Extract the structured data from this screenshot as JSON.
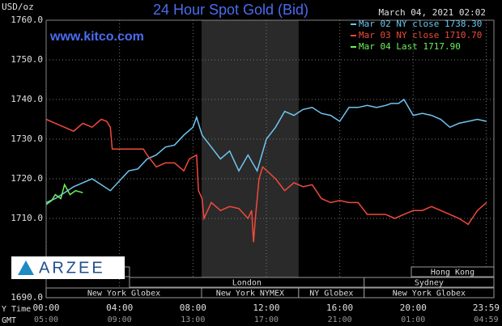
{
  "chart_data": {
    "type": "line",
    "title": "24 Hour Spot Gold (Bid)",
    "timestamp": "March 04, 2021 02:02",
    "y_unit": "USD/oz",
    "website": "www.kitco.com",
    "watermark": "ARZEE",
    "x_row_labels": [
      "Y Time",
      "GMT"
    ],
    "xlim": [
      0,
      24.4
    ],
    "ylim": [
      1690,
      1760
    ],
    "xticks": [
      {
        "value": 0,
        "label": "00:00"
      },
      {
        "value": 4,
        "label": "04:00"
      },
      {
        "value": 8,
        "label": "08:00"
      },
      {
        "value": 12,
        "label": "12:00"
      },
      {
        "value": 16,
        "label": "16:00"
      },
      {
        "value": 20,
        "label": "20:00"
      },
      {
        "value": 23.98,
        "label": "23:59"
      }
    ],
    "gmt_labels": [
      "05:00",
      "09:00",
      "13:00",
      "17:00",
      "21:00",
      "01:00",
      "04:59"
    ],
    "yticks": [
      {
        "value": 1690,
        "label": "1690.0"
      },
      {
        "value": 1710,
        "label": "1710.0"
      },
      {
        "value": 1720,
        "label": "1720.0"
      },
      {
        "value": 1730,
        "label": "1730.0"
      },
      {
        "value": 1740,
        "label": "1740.0"
      },
      {
        "value": 1750,
        "label": "1750.0"
      },
      {
        "value": 1760,
        "label": "1760.0"
      }
    ],
    "grid": true,
    "shaded": [
      8.47,
      13.76
    ],
    "sessions": [
      {
        "name": null,
        "start": 0,
        "end": 4.54,
        "row": 0
      },
      {
        "name": "Hong Kong",
        "start": 19.9,
        "end": 24.4,
        "row": 0
      },
      {
        "name": "London",
        "start": 4.54,
        "end": 17.33,
        "row": 1
      },
      {
        "name": "Sydney",
        "start": 17.33,
        "end": 24.4,
        "row": 1
      },
      {
        "name": "New York Globex",
        "start": 0,
        "end": 8.47,
        "row": 2
      },
      {
        "name": "New York NYMEX",
        "start": 8.47,
        "end": 13.76,
        "row": 2
      },
      {
        "name": "NY Globex",
        "start": 13.76,
        "end": 17.33,
        "row": 2
      },
      {
        "name": "New York Globex",
        "start": 17.33,
        "end": 24.4,
        "row": 2
      }
    ],
    "series": [
      {
        "name": "Mar 02 NY close 1738.30",
        "color": "#6ec6f0",
        "x": [
          0,
          0.5,
          1,
          1.5,
          2,
          2.5,
          3,
          3.5,
          4,
          4.5,
          5,
          5.5,
          6,
          6.5,
          7,
          7.5,
          8,
          8.2,
          8.5,
          9,
          9.5,
          10,
          10.5,
          11,
          11.5,
          12,
          12.5,
          13,
          13.5,
          14,
          14.5,
          15,
          15.5,
          16,
          16.5,
          17,
          17.5,
          18,
          18.5,
          18.8,
          19.2,
          19.5,
          20,
          20.5,
          21,
          21.5,
          22,
          22.5,
          23,
          23.5,
          24
        ],
        "values": [
          1714,
          1715,
          1716.5,
          1718,
          1719,
          1720,
          1718.5,
          1717,
          1719.5,
          1722,
          1722.5,
          1725,
          1726,
          1728,
          1728.5,
          1731,
          1733,
          1735.5,
          1731,
          1728,
          1725,
          1727,
          1722,
          1726,
          1722,
          1730,
          1733,
          1737,
          1736,
          1737.5,
          1738,
          1736.5,
          1736,
          1734.5,
          1738,
          1738,
          1738.5,
          1738,
          1738.5,
          1739,
          1739,
          1740,
          1736,
          1736.5,
          1736,
          1735,
          1733,
          1734,
          1734.5,
          1735,
          1734.5
        ]
      },
      {
        "name": "Mar 03 NY close 1710.70",
        "color": "#f04a3c",
        "x": [
          0,
          0.5,
          1,
          1.5,
          2,
          2.5,
          3,
          3.3,
          3.5,
          3.6,
          5.3,
          5.5,
          6,
          6.5,
          7,
          7.5,
          7.8,
          8.2,
          8.3,
          8.5,
          8.6,
          9,
          9.5,
          10,
          10.5,
          11,
          11.2,
          11.3,
          11.4,
          11.6,
          11.8,
          12.5,
          13,
          13.5,
          14,
          14.5,
          15,
          15.5,
          16,
          16.5,
          17,
          17.5,
          18,
          18.5,
          19,
          19.5,
          20,
          20.5,
          21,
          21.5,
          22,
          22.5,
          23,
          23.5,
          24
        ],
        "values": [
          1735,
          1734,
          1733,
          1732,
          1734,
          1733,
          1735,
          1734.5,
          1733,
          1727.5,
          1727.5,
          1726,
          1723,
          1724,
          1724,
          1722,
          1725,
          1726,
          1717,
          1715,
          1710,
          1714,
          1712,
          1713,
          1712.5,
          1710,
          1712,
          1704,
          1710,
          1720,
          1723,
          1720,
          1717,
          1719,
          1718,
          1718.5,
          1715,
          1714,
          1714.5,
          1714,
          1714,
          1711,
          1711,
          1711,
          1710,
          1711,
          1712,
          1712,
          1713,
          1712,
          1711,
          1710,
          1708.5,
          1712,
          1714
        ]
      },
      {
        "name": "Mar 04 Last 1717.90",
        "color": "#6ef05a",
        "x": [
          0,
          0.3,
          0.5,
          0.8,
          1,
          1.3,
          1.6,
          2
        ],
        "values": [
          1713.5,
          1714.5,
          1716,
          1715,
          1718.5,
          1716,
          1717,
          1716.5
        ]
      }
    ]
  }
}
